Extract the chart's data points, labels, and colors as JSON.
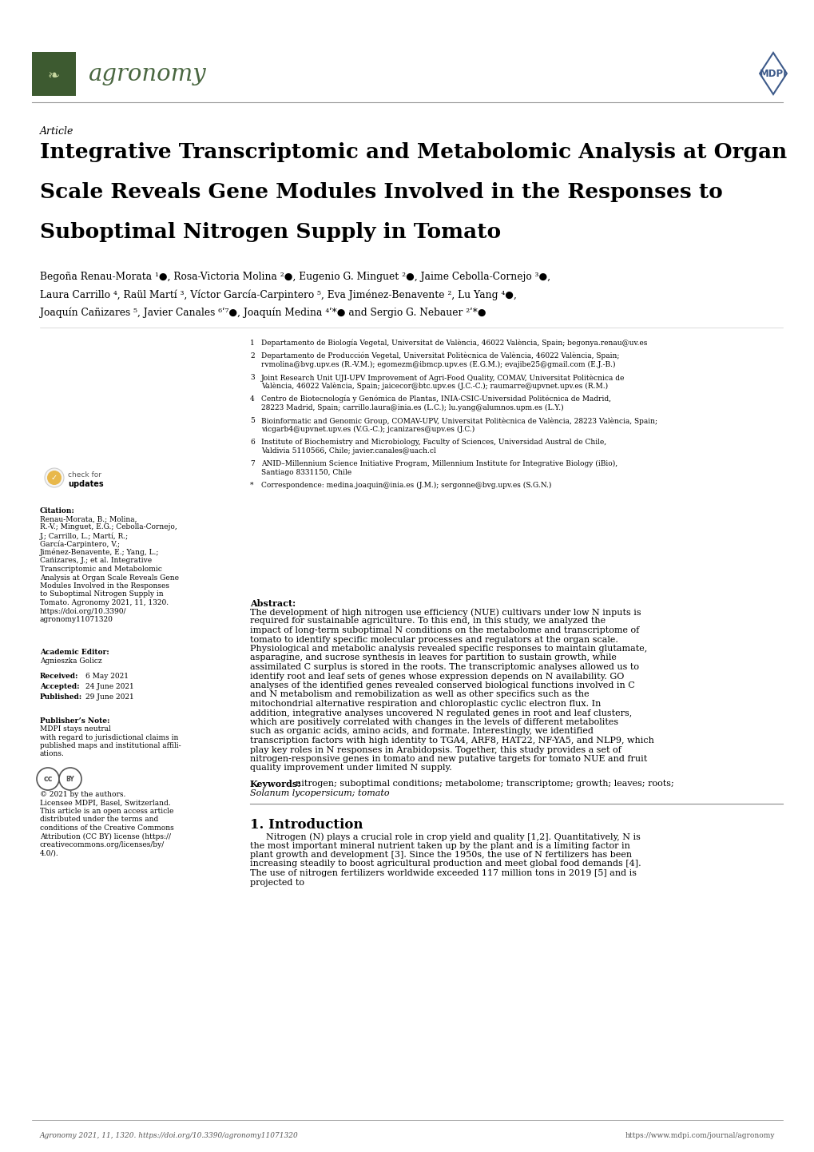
{
  "page_width": 10.2,
  "page_height": 14.42,
  "background_color": "#ffffff",
  "header": {
    "journal_name": "agronomy",
    "journal_color": "#4a6741",
    "journal_box_color": "#3d5a30",
    "mdpi_color": "#3d5a8a"
  },
  "article_label": "Article",
  "title_lines": [
    "Integrative Transcriptomic and Metabolomic Analysis at Organ",
    "Scale Reveals Gene Modules Involved in the Responses to",
    "Suboptimal Nitrogen Supply in Tomato"
  ],
  "affiliations": [
    [
      "1",
      "Departamento de Biología Vegetal, Universitat de València, 46022 València, Spain; begonya.renau@uv.es"
    ],
    [
      "2",
      "Departamento de Producción Vegetal, Universitat Politècnica de València, 46022 València, Spain;",
      "rvmolina@bvg.upv.es (R.-V.M.); egomezm@ibmcp.upv.es (E.G.M.); evajibe25@gmail.com (E.J.-B.)"
    ],
    [
      "3",
      "Joint Research Unit UJI-UPV Improvement of Agri-Food Quality, COMAV, Universitat Politècnica de",
      "València, 46022 València, Spain; jaicecor@btc.upv.es (J.C.-C.); raumarre@upvnet.upv.es (R.M.)"
    ],
    [
      "4",
      "Centro de Biotecnología y Genómica de Plantas, INIA-CSIC-Universidad Politécnica de Madrid,",
      "28223 Madrid, Spain; carrillo.laura@inia.es (L.C.); lu.yang@alumnos.upm.es (L.Y.)"
    ],
    [
      "5",
      "Bioinformatic and Genomic Group, COMAV-UPV, Universitat Politècnica de València, 28223 València, Spain;",
      "vicgarb4@upvnet.upv.es (V.G.-C.); jcanizares@upv.es (J.C.)"
    ],
    [
      "6",
      "Institute of Biochemistry and Microbiology, Faculty of Sciences, Universidad Austral de Chile,",
      "Valdivia 5110566, Chile; javier.canales@uach.cl"
    ],
    [
      "7",
      "ANID–Millennium Science Initiative Program, Millennium Institute for Integrative Biology (iBio),",
      "Santiago 8331150, Chile"
    ],
    [
      "*",
      "Correspondence: medina.joaquin@inia.es (J.M.); sergonne@bvg.upv.es (S.G.N.)"
    ]
  ],
  "citation_lines": [
    "Renau-Morata, B.; Molina,",
    "R.-V.; Minguet, E.G.; Cebolla-Cornejo,",
    "J.; Carrillo, L.; Martí, R.;",
    "García-Carpintero, V.;",
    "Jiménez-Benavente, E.; Yang, L.;",
    "Cañizares, J.; et al. Integrative",
    "Transcriptomic and Metabolomic",
    "Analysis at Organ Scale Reveals Gene",
    "Modules Involved in the Responses",
    "to Suboptimal Nitrogen Supply in",
    "Tomato. Agronomy 2021, 11, 1320.",
    "https://doi.org/10.3390/",
    "agronomy11071320"
  ],
  "academic_editor": "Agnieszka Golicz",
  "received": "6 May 2021",
  "accepted": "24 June 2021",
  "published": "29 June 2021",
  "publisher_note_lines": [
    "MDPI stays neutral",
    "with regard to jurisdictional claims in",
    "published maps and institutional affili-",
    "ations."
  ],
  "copyright_lines": [
    "© 2021 by the authors.",
    "Licensee MDPI, Basel, Switzerland.",
    "This article is an open access article",
    "distributed under the terms and",
    "conditions of the Creative Commons",
    "Attribution (CC BY) license (https://",
    "creativecommons.org/licenses/by/",
    "4.0/)."
  ],
  "abstract_text": "The development of high nitrogen use efficiency (NUE) cultivars under low N inputs is required for sustainable agriculture. To this end, in this study, we analyzed the impact of long-term suboptimal N conditions on the metabolome and transcriptome of tomato to identify specific molecular processes and regulators at the organ scale. Physiological and metabolic analysis revealed specific responses to maintain glutamate, asparagine, and sucrose synthesis in leaves for partition to sustain growth, while assimilated C surplus is stored in the roots. The transcriptomic analyses allowed us to identify root and leaf sets of genes whose expression depends on N availability. GO analyses of the identified genes revealed conserved biological functions involved in C and N metabolism and remobilization as well as other specifics such as the mitochondrial alternative respiration and chloroplastic cyclic electron flux. In addition, integrative analyses uncovered N regulated genes in root and leaf clusters, which are positively correlated with changes in the levels of different metabolites such as organic acids, amino acids, and formate. Interestingly, we identified transcription factors with high identity to TGA4, ARF8, HAT22, NF-YA5, and NLP9, which play key roles in N responses in Arabidopsis. Together, this study provides a set of nitrogen-responsive genes in tomato and new putative targets for tomato NUE and fruit quality improvement under limited N supply.",
  "keywords_line1": "nitrogen; suboptimal conditions; metabolome; transcriptome; growth; leaves; roots;",
  "keywords_line2": "Solanum lycopersicum; tomato",
  "intro_text": "Nitrogen (N) plays a crucial role in crop yield and quality [1,2]. Quantitatively, N is the most important mineral nutrient taken up by the plant and is a limiting factor in plant growth and development [3]. Since the 1950s, the use of N fertilizers has been increasing steadily to boost agricultural production and meet global food demands [4]. The use of nitrogen fertilizers worldwide exceeded 117 million tons in 2019 [5] and is projected to",
  "footer_left": "Agronomy 2021, 11, 1320. https://doi.org/10.3390/agronomy11071320",
  "footer_right": "https://www.mdpi.com/journal/agronomy"
}
